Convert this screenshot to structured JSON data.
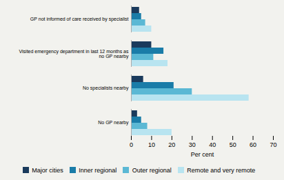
{
  "chart_data": {
    "type": "bar",
    "orientation": "horizontal",
    "categories": [
      "GP not informed of care received by specialist",
      "Visited emergency department in last 12 months as\nno GP nearby",
      "No specialists nearby",
      "No GP nearby"
    ],
    "series": [
      {
        "name": "Major cities",
        "color": "#1a3a5c",
        "values": [
          4,
          10,
          6,
          3
        ]
      },
      {
        "name": "Inner regional",
        "color": "#1a7ca8",
        "values": [
          5,
          16,
          21,
          5
        ]
      },
      {
        "name": "Outer regional",
        "color": "#5bb8d4",
        "values": [
          7,
          11,
          30,
          8
        ]
      },
      {
        "name": "Remote and very remote",
        "color": "#b8e4f0",
        "values": [
          10,
          18,
          58,
          20
        ]
      }
    ],
    "xlabel": "Per cent",
    "xlim": [
      0,
      70
    ],
    "xticks": [
      0,
      10,
      20,
      30,
      40,
      50,
      60,
      70
    ],
    "grid": false,
    "legend": "bottom"
  }
}
